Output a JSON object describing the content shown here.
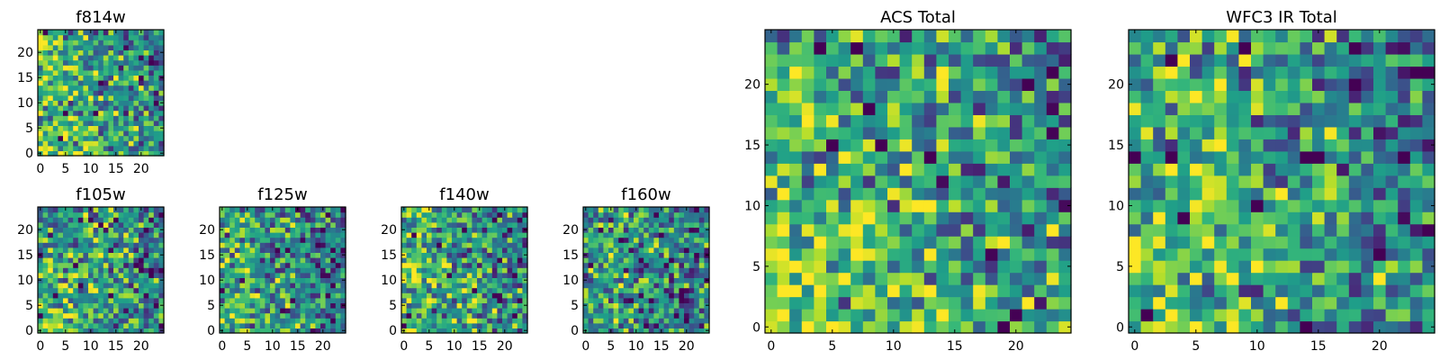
{
  "chart_data": [
    {
      "type": "heatmap",
      "title": "f814w",
      "colormap": "viridis",
      "seed": 814,
      "bias": 0.25,
      "xticks": [
        "0",
        "5",
        "10",
        "15",
        "20"
      ],
      "yticks": [
        "0",
        "5",
        "10",
        "15",
        "20"
      ],
      "xlim": [
        -0.5,
        24.5
      ],
      "ylim": [
        -0.5,
        24.5
      ],
      "grid_size": 25
    },
    {
      "type": "heatmap",
      "title": "f105w",
      "colormap": "viridis",
      "seed": 105,
      "bias": 0.15,
      "xticks": [
        "0",
        "5",
        "10",
        "15",
        "20"
      ],
      "yticks": [
        "0",
        "5",
        "10",
        "15",
        "20"
      ],
      "xlim": [
        -0.5,
        24.5
      ],
      "ylim": [
        -0.5,
        24.5
      ],
      "grid_size": 25
    },
    {
      "type": "heatmap",
      "title": "f125w",
      "colormap": "viridis",
      "seed": 125,
      "bias": 0.1,
      "xticks": [
        "0",
        "5",
        "10",
        "15",
        "20"
      ],
      "yticks": [
        "0",
        "5",
        "10",
        "15",
        "20"
      ],
      "xlim": [
        -0.5,
        24.5
      ],
      "ylim": [
        -0.5,
        24.5
      ],
      "grid_size": 25
    },
    {
      "type": "heatmap",
      "title": "f140w",
      "colormap": "viridis",
      "seed": 140,
      "bias": 0.2,
      "xticks": [
        "0",
        "5",
        "10",
        "15",
        "20"
      ],
      "yticks": [
        "0",
        "5",
        "10",
        "15",
        "20"
      ],
      "xlim": [
        -0.5,
        24.5
      ],
      "ylim": [
        -0.5,
        24.5
      ],
      "grid_size": 25
    },
    {
      "type": "heatmap",
      "title": "f160w",
      "colormap": "viridis",
      "seed": 160,
      "bias": 0.05,
      "xticks": [
        "0",
        "5",
        "10",
        "15",
        "20"
      ],
      "yticks": [
        "0",
        "5",
        "10",
        "15",
        "20"
      ],
      "xlim": [
        -0.5,
        24.5
      ],
      "ylim": [
        -0.5,
        24.5
      ],
      "grid_size": 25
    },
    {
      "type": "heatmap",
      "title": "ACS Total",
      "colormap": "viridis",
      "seed": 7,
      "bias": 0.3,
      "xticks": [
        "0",
        "5",
        "10",
        "15",
        "20"
      ],
      "yticks": [
        "0",
        "5",
        "10",
        "15",
        "20"
      ],
      "xlim": [
        -0.5,
        24.5
      ],
      "ylim": [
        -0.5,
        24.5
      ],
      "grid_size": 25
    },
    {
      "type": "heatmap",
      "title": "WFC3 IR Total",
      "colormap": "viridis",
      "seed": 33,
      "bias": 0.2,
      "xticks": [
        "0",
        "5",
        "10",
        "15",
        "20"
      ],
      "yticks": [
        "0",
        "5",
        "10",
        "15",
        "20"
      ],
      "xlim": [
        -0.5,
        24.5
      ],
      "ylim": [
        -0.5,
        24.5
      ],
      "grid_size": 25
    }
  ]
}
